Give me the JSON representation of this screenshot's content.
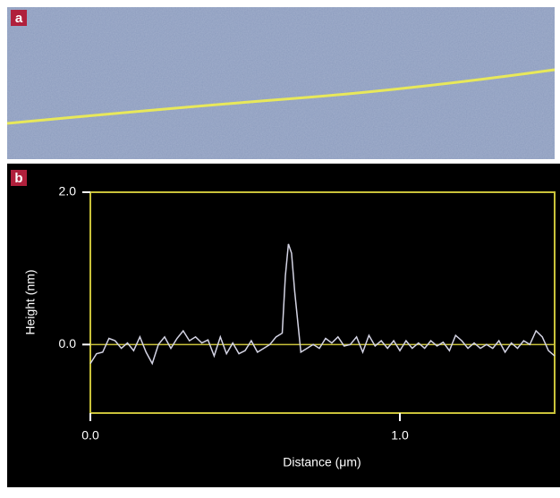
{
  "panel_a_label": "a",
  "chart_data": {
    "type": "line",
    "panel_label": "b",
    "xlabel": "Distance (μm)",
    "ylabel": "Height (nm)",
    "x": [
      0,
      0.02,
      0.04,
      0.06,
      0.08,
      0.1,
      0.12,
      0.14,
      0.16,
      0.18,
      0.2,
      0.22,
      0.24,
      0.26,
      0.28,
      0.3,
      0.32,
      0.34,
      0.36,
      0.38,
      0.4,
      0.42,
      0.44,
      0.46,
      0.48,
      0.5,
      0.52,
      0.54,
      0.56,
      0.58,
      0.6,
      0.62,
      0.63,
      0.64,
      0.65,
      0.66,
      0.68,
      0.7,
      0.72,
      0.74,
      0.76,
      0.78,
      0.8,
      0.82,
      0.84,
      0.86,
      0.88,
      0.9,
      0.92,
      0.94,
      0.96,
      0.98,
      1.0,
      1.02,
      1.04,
      1.06,
      1.08,
      1.1,
      1.12,
      1.14,
      1.16,
      1.18,
      1.2,
      1.22,
      1.24,
      1.26,
      1.28,
      1.3,
      1.32,
      1.34,
      1.36,
      1.38,
      1.4,
      1.42,
      1.44,
      1.46,
      1.48,
      1.5
    ],
    "values": [
      -0.25,
      -0.12,
      -0.1,
      0.08,
      0.05,
      -0.05,
      0.02,
      -0.08,
      0.1,
      -0.1,
      -0.25,
      0.0,
      0.1,
      -0.05,
      0.08,
      0.18,
      0.05,
      0.1,
      0.02,
      0.06,
      -0.15,
      0.1,
      -0.12,
      0.02,
      -0.12,
      -0.08,
      0.05,
      -0.1,
      -0.05,
      0.0,
      0.1,
      0.15,
      0.9,
      1.32,
      1.2,
      0.7,
      -0.1,
      -0.05,
      0.0,
      -0.05,
      0.08,
      0.02,
      0.1,
      -0.02,
      0.0,
      0.1,
      -0.1,
      0.12,
      -0.02,
      0.05,
      -0.05,
      0.05,
      -0.08,
      0.05,
      -0.05,
      0.02,
      -0.05,
      0.05,
      -0.02,
      0.03,
      -0.08,
      0.12,
      0.05,
      -0.05,
      0.02,
      -0.05,
      0.0,
      -0.05,
      0.05,
      -0.1,
      0.02,
      -0.05,
      0.05,
      0.0,
      0.18,
      0.1,
      -0.08,
      -0.15
    ],
    "color": "#d4d4e4",
    "frame_color": "#c9c23a",
    "zero_line": true,
    "xlim": [
      0,
      1.5
    ],
    "ylim": [
      -0.9,
      2.0
    ],
    "xticks": [
      {
        "value": 0,
        "label": "0.0"
      },
      {
        "value": 1,
        "label": "1.0"
      }
    ],
    "yticks": [
      {
        "value": 0,
        "label": "0.0"
      },
      {
        "value": 2,
        "label": "2.0"
      }
    ]
  }
}
